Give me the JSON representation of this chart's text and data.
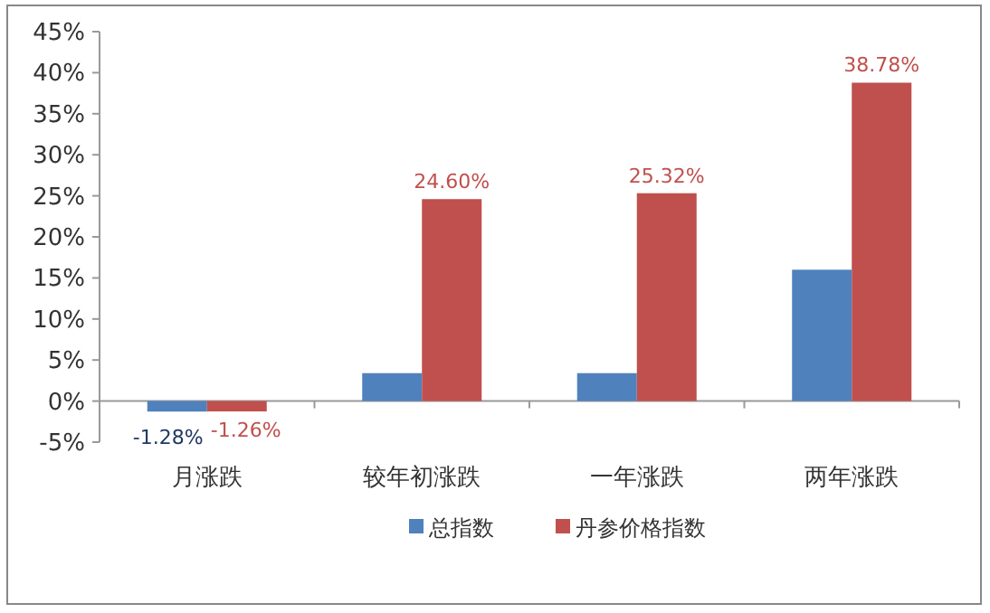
{
  "chart_data": {
    "type": "bar",
    "categories": [
      "月涨跌",
      "较年初涨跌",
      "一年涨跌",
      "两年涨跌"
    ],
    "series": [
      {
        "name": "总指数",
        "color": "#4f81bd",
        "values": [
          -1.28,
          3.4,
          3.4,
          16.0
        ],
        "value_labels": [
          "-1.28%",
          null,
          null,
          null
        ]
      },
      {
        "name": "丹参价格指数",
        "color": "#c0504d",
        "values": [
          -1.26,
          24.6,
          25.32,
          38.78
        ],
        "value_labels": [
          "-1.26%",
          "24.60%",
          "25.32%",
          "38.78%"
        ]
      }
    ],
    "ylim": [
      -5,
      45
    ],
    "yticks": [
      {
        "value": -5,
        "label": "-5%"
      },
      {
        "value": 0,
        "label": "0%"
      },
      {
        "value": 5,
        "label": "5%"
      },
      {
        "value": 10,
        "label": "10%"
      },
      {
        "value": 15,
        "label": "15%"
      },
      {
        "value": 20,
        "label": "20%"
      },
      {
        "value": 25,
        "label": "25%"
      },
      {
        "value": 30,
        "label": "30%"
      },
      {
        "value": 35,
        "label": "35%"
      },
      {
        "value": 40,
        "label": "40%"
      },
      {
        "value": 45,
        "label": "45%"
      }
    ],
    "legend": "bottom"
  }
}
